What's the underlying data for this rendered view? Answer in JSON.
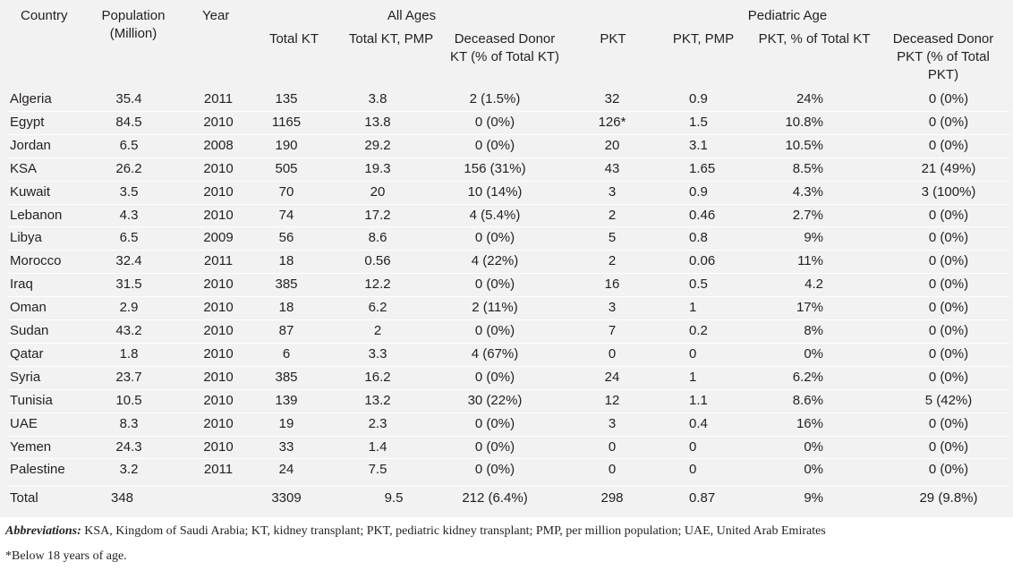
{
  "header": {
    "country": "Country",
    "population": [
      "Population",
      "(Million)"
    ],
    "year": "Year",
    "all_ages": "All Ages",
    "pediatric_age": "Pediatric Age",
    "total_kt": "Total KT",
    "total_kt_pmp": "Total KT, PMP",
    "deceased_donor_kt": [
      "Deceased Donor",
      "KT (% of Total KT)"
    ],
    "pkt": "PKT",
    "pkt_pmp": "PKT, PMP",
    "pkt_pct_total_kt": "PKT, % of Total KT",
    "deceased_donor_pkt": [
      "Deceased Donor",
      "PKT (% of Total",
      "PKT)"
    ]
  },
  "rows": [
    {
      "country": "Algeria",
      "population": "35.4",
      "year": "2011",
      "total_kt": "135",
      "kt_pmp": "3.8",
      "dd_kt": "2 (1.5%)",
      "pkt": "32",
      "pkt_pmp": "0.9",
      "pkt_pct": "24%",
      "dd_pkt": "0 (0%)"
    },
    {
      "country": "Egypt",
      "population": "84.5",
      "year": "2010",
      "total_kt": "1165",
      "kt_pmp": "13.8",
      "dd_kt": "0 (0%)",
      "pkt": "126*",
      "pkt_pmp": "1.5",
      "pkt_pct": "10.8%",
      "dd_pkt": "0 (0%)"
    },
    {
      "country": "Jordan",
      "population": "6.5",
      "year": "2008",
      "total_kt": "190",
      "kt_pmp": "29.2",
      "dd_kt": "0 (0%)",
      "pkt": "20",
      "pkt_pmp": "3.1",
      "pkt_pct": "10.5%",
      "dd_pkt": "0 (0%)"
    },
    {
      "country": "KSA",
      "population": "26.2",
      "year": "2010",
      "total_kt": "505",
      "kt_pmp": "19.3",
      "dd_kt": "156 (31%)",
      "pkt": "43",
      "pkt_pmp": "1.65",
      "pkt_pct": "8.5%",
      "dd_pkt": "21 (49%)"
    },
    {
      "country": "Kuwait",
      "population": "3.5",
      "year": "2010",
      "total_kt": "70",
      "kt_pmp": "20",
      "dd_kt": "10 (14%)",
      "pkt": "3",
      "pkt_pmp": "0.9",
      "pkt_pct": "4.3%",
      "dd_pkt": "3 (100%)"
    },
    {
      "country": "Lebanon",
      "population": "4.3",
      "year": "2010",
      "total_kt": "74",
      "kt_pmp": "17.2",
      "dd_kt": "4 (5.4%)",
      "pkt": "2",
      "pkt_pmp": "0.46",
      "pkt_pct": "2.7%",
      "dd_pkt": "0 (0%)"
    },
    {
      "country": "Libya",
      "population": "6.5",
      "year": "2009",
      "total_kt": "56",
      "kt_pmp": "8.6",
      "dd_kt": "0 (0%)",
      "pkt": "5",
      "pkt_pmp": "0.8",
      "pkt_pct": "9%",
      "dd_pkt": "0 (0%)"
    },
    {
      "country": "Morocco",
      "population": "32.4",
      "year": "2011",
      "total_kt": "18",
      "kt_pmp": "0.56",
      "dd_kt": "4 (22%)",
      "pkt": "2",
      "pkt_pmp": "0.06",
      "pkt_pct": "11%",
      "dd_pkt": "0 (0%)"
    },
    {
      "country": "Iraq",
      "population": "31.5",
      "year": "2010",
      "total_kt": "385",
      "kt_pmp": "12.2",
      "dd_kt": "0 (0%)",
      "pkt": "16",
      "pkt_pmp": "0.5",
      "pkt_pct": "4.2",
      "dd_pkt": "0 (0%)"
    },
    {
      "country": "Oman",
      "population": "2.9",
      "year": "2010",
      "total_kt": "18",
      "kt_pmp": "6.2",
      "dd_kt": "2 (11%)",
      "pkt": "3",
      "pkt_pmp": "1",
      "pkt_pct": "17%",
      "dd_pkt": "0 (0%)"
    },
    {
      "country": "Sudan",
      "population": "43.2",
      "year": "2010",
      "total_kt": "87",
      "kt_pmp": "2",
      "dd_kt": "0 (0%)",
      "pkt": "7",
      "pkt_pmp": "0.2",
      "pkt_pct": "8%",
      "dd_pkt": "0 (0%)"
    },
    {
      "country": "Qatar",
      "population": "1.8",
      "year": "2010",
      "total_kt": "6",
      "kt_pmp": "3.3",
      "dd_kt": "4 (67%)",
      "pkt": "0",
      "pkt_pmp": "0",
      "pkt_pct": "0%",
      "dd_pkt": "0 (0%)"
    },
    {
      "country": "Syria",
      "population": "23.7",
      "year": "2010",
      "total_kt": "385",
      "kt_pmp": "16.2",
      "dd_kt": "0 (0%)",
      "pkt": "24",
      "pkt_pmp": "1",
      "pkt_pct": "6.2%",
      "dd_pkt": "0 (0%)"
    },
    {
      "country": "Tunisia",
      "population": "10.5",
      "year": "2010",
      "total_kt": "139",
      "kt_pmp": "13.2",
      "dd_kt": "30 (22%)",
      "pkt": "12",
      "pkt_pmp": "1.1",
      "pkt_pct": "8.6%",
      "dd_pkt": "5 (42%)"
    },
    {
      "country": "UAE",
      "population": "8.3",
      "year": "2010",
      "total_kt": "19",
      "kt_pmp": "2.3",
      "dd_kt": "0 (0%)",
      "pkt": "3",
      "pkt_pmp": "0.4",
      "pkt_pct": "16%",
      "dd_pkt": "0 (0%)"
    },
    {
      "country": "Yemen",
      "population": "24.3",
      "year": "2010",
      "total_kt": "33",
      "kt_pmp": "1.4",
      "dd_kt": "0 (0%)",
      "pkt": "0",
      "pkt_pmp": "0",
      "pkt_pct": "0%",
      "dd_pkt": "0 (0%)"
    },
    {
      "country": "Palestine",
      "population": "3.2",
      "year": "2011",
      "total_kt": "24",
      "kt_pmp": "7.5",
      "dd_kt": "0 (0%)",
      "pkt": "0",
      "pkt_pmp": "0",
      "pkt_pct": "0%",
      "dd_pkt": "0 (0%)"
    }
  ],
  "total": {
    "country": "Total",
    "population": "348",
    "year": "",
    "total_kt": "3309",
    "kt_pmp": "9.5",
    "dd_kt": "212 (6.4%)",
    "pkt": "298",
    "pkt_pmp": "0.87",
    "pkt_pct": "9%",
    "dd_pkt": "29 (9.8%)"
  },
  "notes": {
    "abbreviations_label": "Abbreviations:",
    "abbreviations_text": " KSA, Kingdom of Saudi Arabia; KT, kidney transplant; PKT, pediatric kidney transplant; PMP, per million population; UAE, United Arab Emirates",
    "footnote": "*Below 18 years of age."
  },
  "colors": {
    "table_background": "#f2f2f2",
    "text": "#231f20",
    "row_separator": "#ffffff"
  }
}
